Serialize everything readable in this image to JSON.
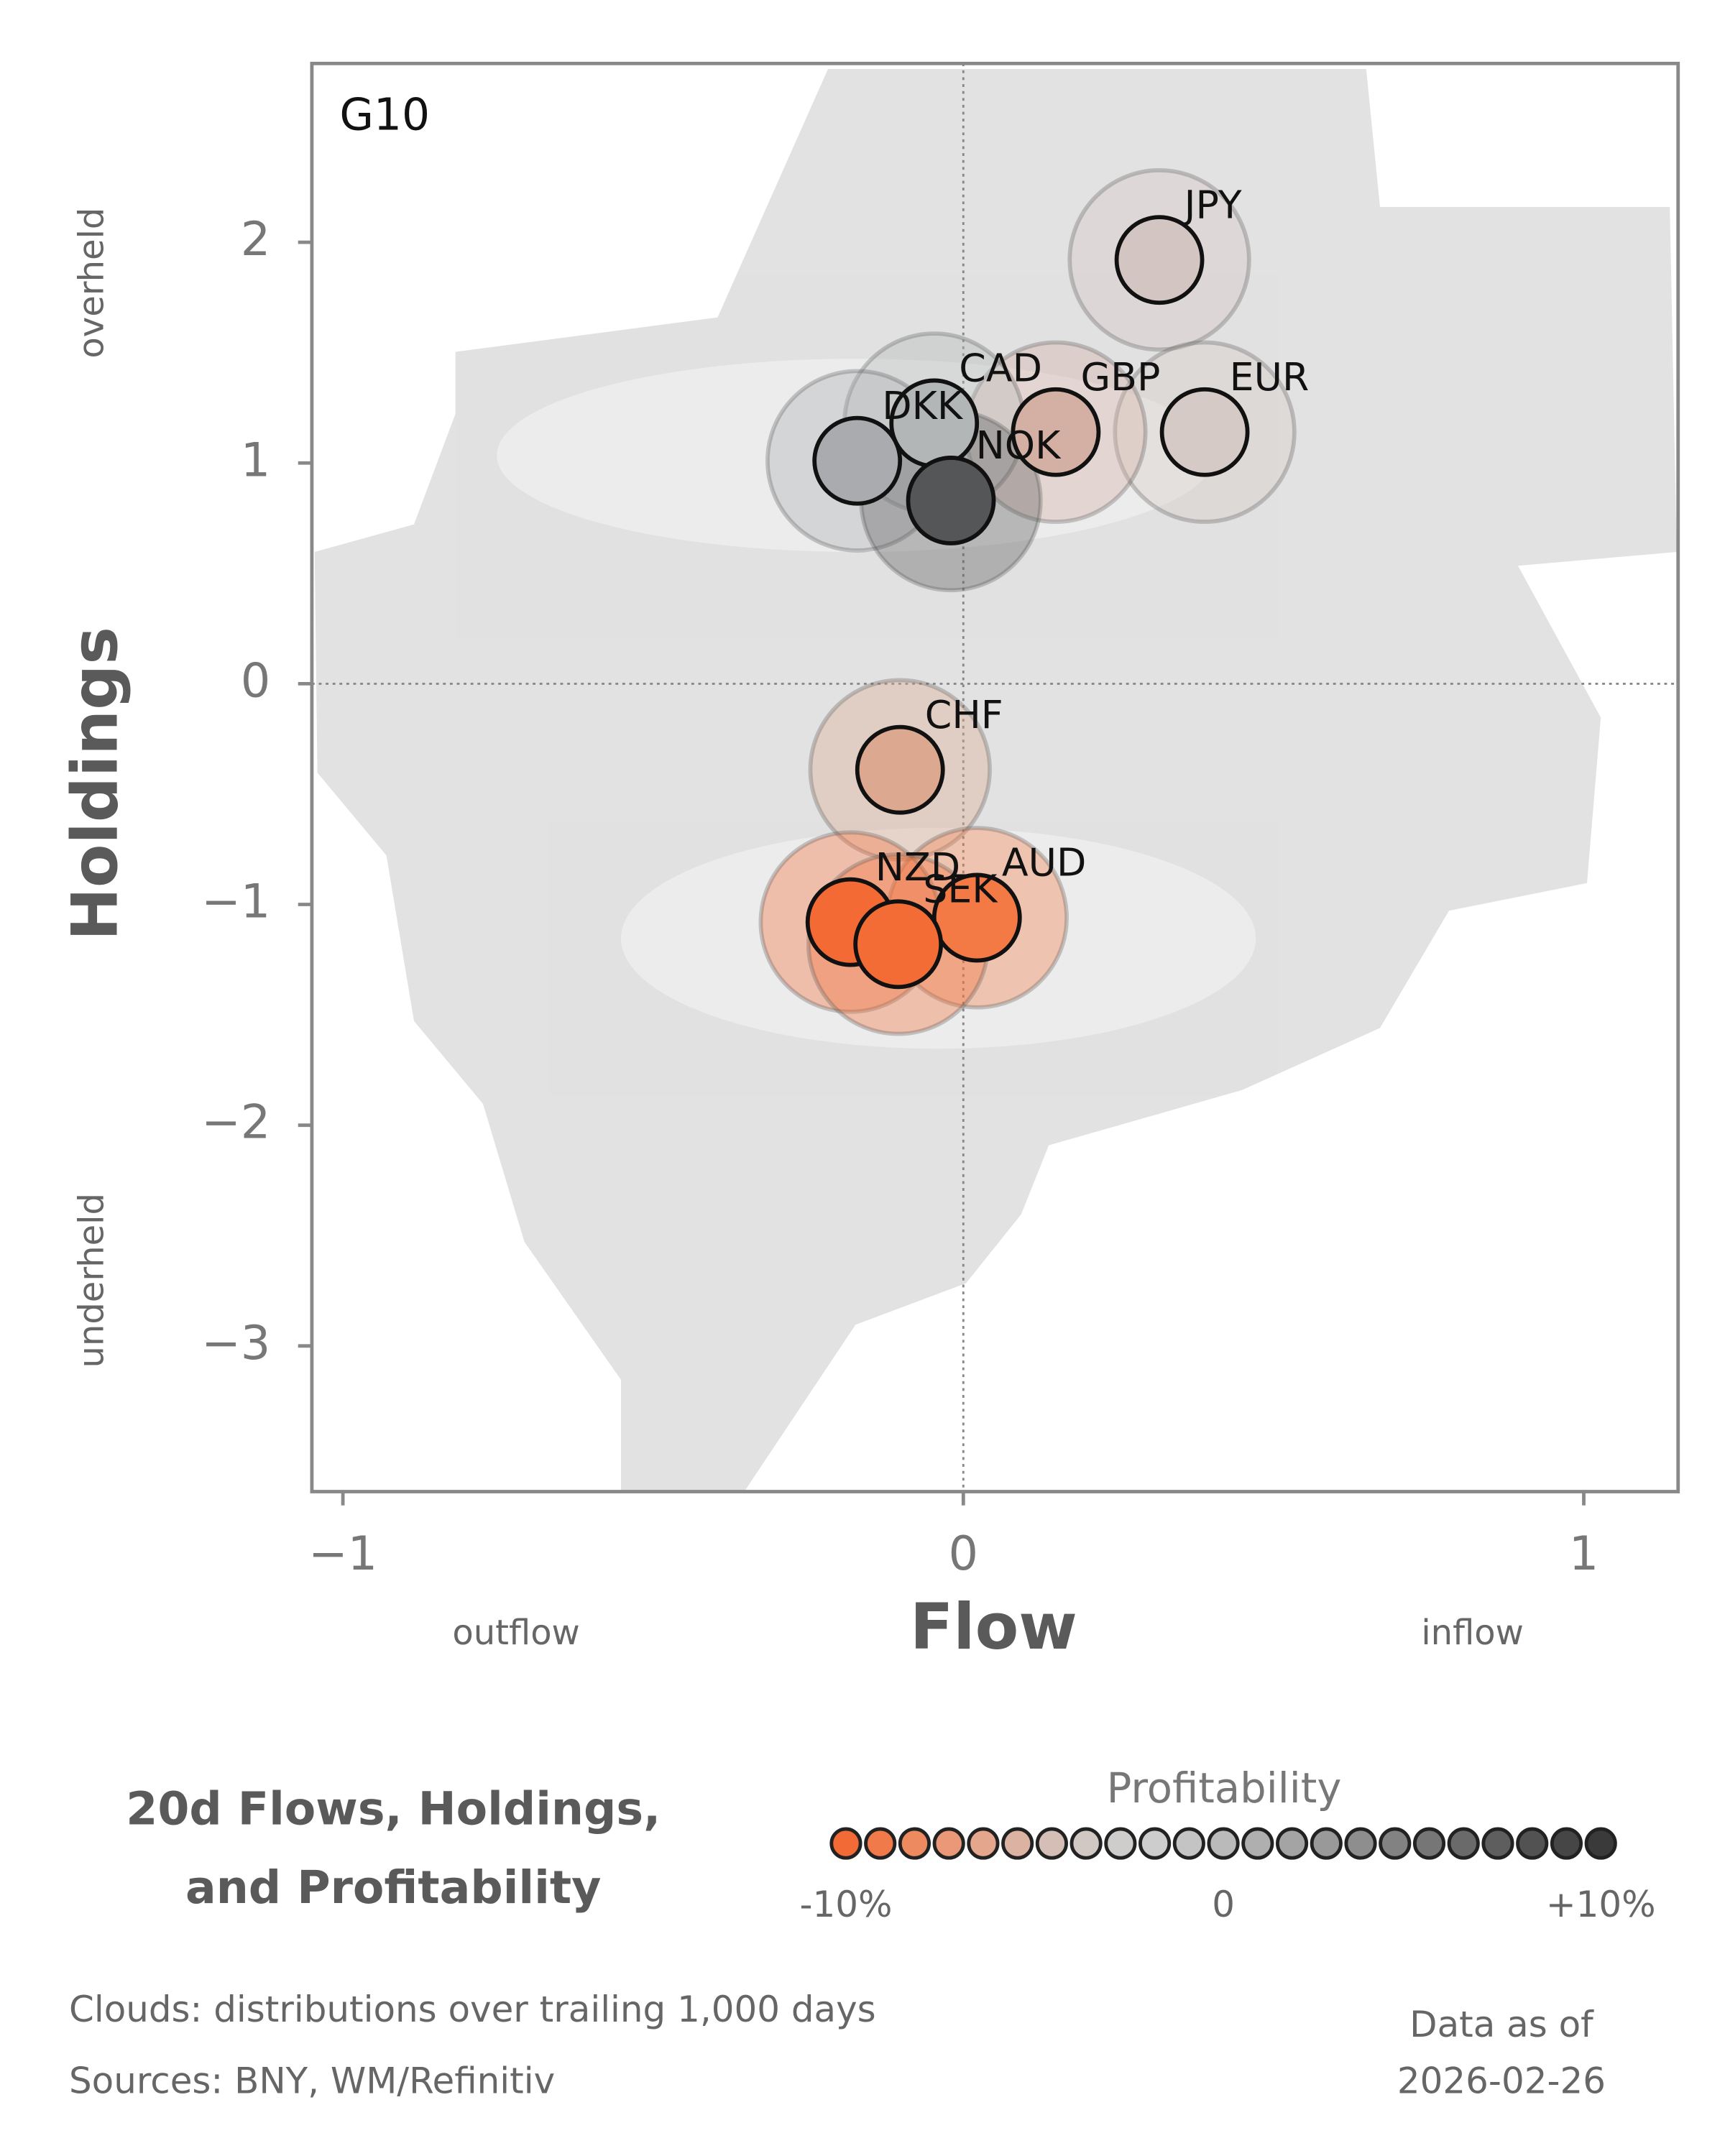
{
  "chart_data": {
    "type": "scatter",
    "annotation": "G10",
    "xlabel": "Flow",
    "ylabel": "Holdings",
    "x_low_label": "outflow",
    "x_high_label": "inflow",
    "y_high_label": "overheld",
    "y_low_label": "underheld",
    "labels": [
      "JPY",
      "EUR",
      "GBP",
      "CAD",
      "DKK",
      "NOK",
      "CHF",
      "AUD",
      "NZD",
      "SEK"
    ],
    "x": [
      0.316,
      0.389,
      0.149,
      -0.047,
      -0.171,
      -0.02,
      -0.102,
      0.022,
      -0.182,
      -0.105
    ],
    "y": [
      1.92,
      1.14,
      1.14,
      1.18,
      1.01,
      0.83,
      -0.39,
      -1.06,
      -1.08,
      -1.18
    ],
    "colors": [
      "#d3c6c2",
      "#d6cac6",
      "#d4b0a4",
      "#b3b6b6",
      "#a9abae",
      "#555658",
      "#dca890",
      "#f47a45",
      "#f46a35",
      "#f46c35"
    ],
    "xlim": [
      -1.05,
      1.152
    ],
    "ylim": [
      -3.66,
      2.81
    ],
    "xticks": [
      {
        "value": -1,
        "label": "−1"
      },
      0,
      1
    ],
    "yticks": [
      {
        "value": -3,
        "label": "−3"
      },
      {
        "value": -2,
        "label": "−2"
      },
      {
        "value": -1,
        "label": "−1"
      },
      0,
      1,
      2
    ],
    "zero_lines": true,
    "title_lines": [
      "20d Flows, Holdings,",
      "and Profitability"
    ],
    "colorbar": {
      "title": "Profitability",
      "lim": [
        -10,
        10
      ],
      "ticks": [
        {
          "value": -10,
          "label": "-10%"
        },
        0,
        {
          "value": 10,
          "label": "+10%"
        }
      ],
      "colors": [
        "#f26a35",
        "#f07a4a",
        "#ee8a60",
        "#ea9877",
        "#e4a68c",
        "#dcb3a2",
        "#d5beb5",
        "#d1c8c4",
        "#cfcdcc",
        "#cdcdcd",
        "#c4c4c4",
        "#bababa",
        "#afafaf",
        "#a4a4a4",
        "#999999",
        "#8e8e8e",
        "#828282",
        "#767676",
        "#6a6a6a",
        "#5e5e5e",
        "#525252",
        "#464646",
        "#3a3a3a"
      ]
    },
    "footnotes": [
      "Clouds:  distributions over trailing 1,000 days",
      "Sources:  BNY, WM/Refinitiv"
    ],
    "date_label": "Data as of",
    "date": "2026-02-26"
  }
}
